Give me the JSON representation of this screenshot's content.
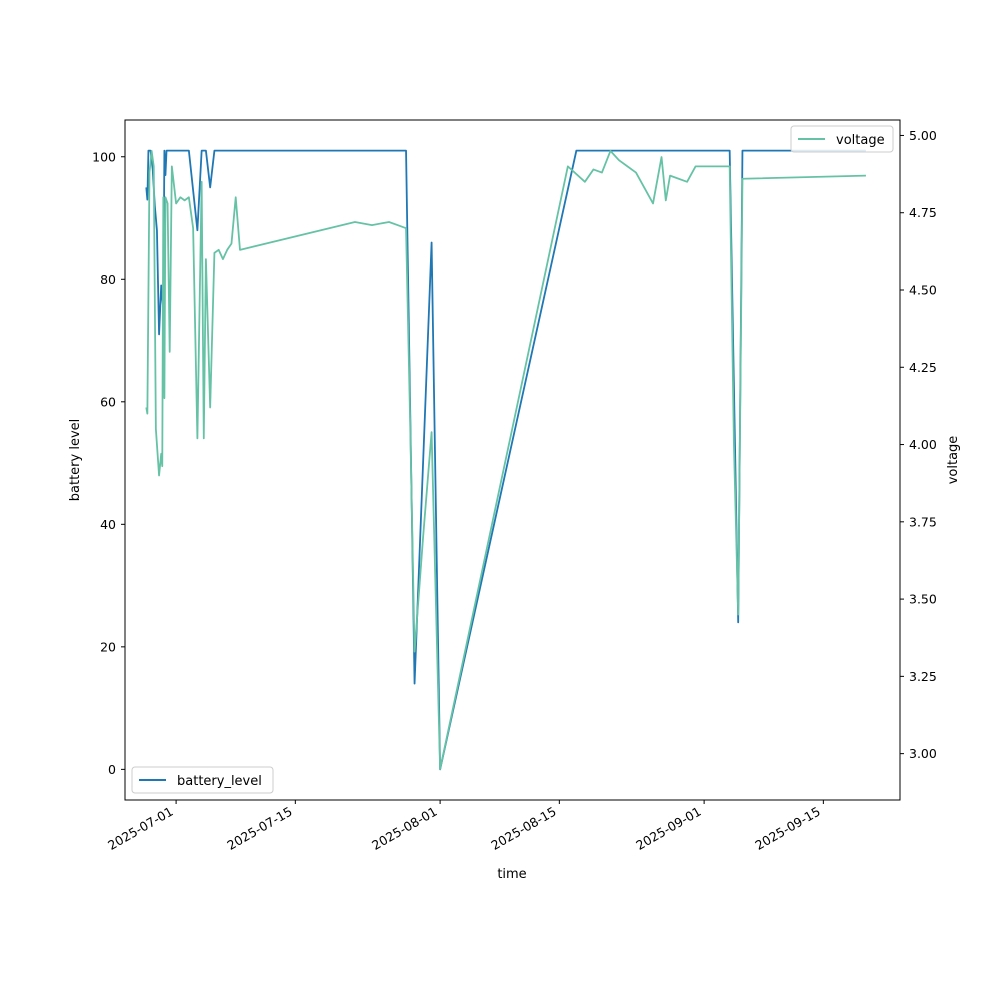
{
  "chart_data": {
    "type": "line",
    "xlabel": "time",
    "ylabel_left": "battery level",
    "ylabel_right": "voltage",
    "x_range": [
      "2025-06-25",
      "2025-09-24"
    ],
    "y_left_range": [
      -5,
      106
    ],
    "y_right_range": [
      2.85,
      5.05
    ],
    "x_ticks": [
      "2025-07-01",
      "2025-07-15",
      "2025-08-01",
      "2025-08-15",
      "2025-09-01",
      "2025-09-15"
    ],
    "y_left_ticks": [
      0,
      20,
      40,
      60,
      80,
      100
    ],
    "y_right_ticks": [
      "3.00",
      "3.25",
      "3.50",
      "3.75",
      "4.00",
      "4.25",
      "4.50",
      "4.75",
      "5.00"
    ],
    "colors": {
      "battery_level": "#1f77b4",
      "voltage": "#66c2a5"
    },
    "legends": {
      "battery_level": "lower-left",
      "voltage": "upper-right"
    },
    "series": [
      {
        "name": "battery_level",
        "axis": "left",
        "points": [
          [
            "2025-06-27T12:00",
            95
          ],
          [
            "2025-06-27T15:00",
            93
          ],
          [
            "2025-06-27T18:00",
            101
          ],
          [
            "2025-06-28T00:00",
            101
          ],
          [
            "2025-06-28T06:00",
            98
          ],
          [
            "2025-06-28T12:00",
            92
          ],
          [
            "2025-06-28T18:00",
            88
          ],
          [
            "2025-06-29T00:00",
            71
          ],
          [
            "2025-06-29T06:00",
            79
          ],
          [
            "2025-06-29T12:00",
            75
          ],
          [
            "2025-06-29T15:00",
            101
          ],
          [
            "2025-06-29T18:00",
            97
          ],
          [
            "2025-06-29T21:00",
            101
          ],
          [
            "2025-07-02T12:00",
            101
          ],
          [
            "2025-07-03T12:00",
            88
          ],
          [
            "2025-07-04T00:00",
            101
          ],
          [
            "2025-07-04T12:00",
            101
          ],
          [
            "2025-07-05T00:00",
            95
          ],
          [
            "2025-07-05T12:00",
            101
          ],
          [
            "2025-07-28T00:00",
            101
          ],
          [
            "2025-07-29T00:00",
            14
          ],
          [
            "2025-07-31T00:00",
            86
          ],
          [
            "2025-08-01T00:00",
            0
          ],
          [
            "2025-08-17T00:00",
            101
          ],
          [
            "2025-09-04T00:00",
            101
          ],
          [
            "2025-09-05T00:00",
            24
          ],
          [
            "2025-09-05T12:00",
            101
          ],
          [
            "2025-09-20T00:00",
            101
          ]
        ]
      },
      {
        "name": "voltage",
        "axis": "right",
        "points": [
          [
            "2025-06-27T12:00",
            4.12
          ],
          [
            "2025-06-27T15:00",
            4.1
          ],
          [
            "2025-06-27T21:00",
            4.88
          ],
          [
            "2025-06-28T03:00",
            4.95
          ],
          [
            "2025-06-28T09:00",
            4.9
          ],
          [
            "2025-06-28T15:00",
            4.05
          ],
          [
            "2025-06-29T00:00",
            3.9
          ],
          [
            "2025-06-29T06:00",
            3.97
          ],
          [
            "2025-06-29T09:00",
            3.93
          ],
          [
            "2025-06-29T12:00",
            4.8
          ],
          [
            "2025-06-29T15:00",
            4.15
          ],
          [
            "2025-06-29T18:00",
            4.8
          ],
          [
            "2025-06-30T00:00",
            4.78
          ],
          [
            "2025-06-30T06:00",
            4.3
          ],
          [
            "2025-06-30T12:00",
            4.9
          ],
          [
            "2025-07-01T00:00",
            4.78
          ],
          [
            "2025-07-01T12:00",
            4.8
          ],
          [
            "2025-07-02T00:00",
            4.79
          ],
          [
            "2025-07-02T12:00",
            4.8
          ],
          [
            "2025-07-03T00:00",
            4.7
          ],
          [
            "2025-07-03T12:00",
            4.02
          ],
          [
            "2025-07-04T00:00",
            4.85
          ],
          [
            "2025-07-04T06:00",
            4.02
          ],
          [
            "2025-07-04T12:00",
            4.6
          ],
          [
            "2025-07-05T00:00",
            4.12
          ],
          [
            "2025-07-05T12:00",
            4.62
          ],
          [
            "2025-07-06T00:00",
            4.63
          ],
          [
            "2025-07-06T12:00",
            4.6
          ],
          [
            "2025-07-07T00:00",
            4.63
          ],
          [
            "2025-07-07T12:00",
            4.65
          ],
          [
            "2025-07-08T00:00",
            4.8
          ],
          [
            "2025-07-08T12:00",
            4.63
          ],
          [
            "2025-07-22T00:00",
            4.72
          ],
          [
            "2025-07-24T00:00",
            4.71
          ],
          [
            "2025-07-26T00:00",
            4.72
          ],
          [
            "2025-07-27T00:00",
            4.71
          ],
          [
            "2025-07-28T00:00",
            4.7
          ],
          [
            "2025-07-28T12:00",
            4.05
          ],
          [
            "2025-07-29T00:00",
            3.33
          ],
          [
            "2025-07-30T00:00",
            3.7
          ],
          [
            "2025-07-31T00:00",
            4.04
          ],
          [
            "2025-08-01T00:00",
            2.95
          ],
          [
            "2025-08-16T00:00",
            4.9
          ],
          [
            "2025-08-18T00:00",
            4.85
          ],
          [
            "2025-08-19T00:00",
            4.89
          ],
          [
            "2025-08-20T00:00",
            4.88
          ],
          [
            "2025-08-21T00:00",
            4.95
          ],
          [
            "2025-08-22T00:00",
            4.92
          ],
          [
            "2025-08-23T00:00",
            4.9
          ],
          [
            "2025-08-24T00:00",
            4.88
          ],
          [
            "2025-08-26T00:00",
            4.78
          ],
          [
            "2025-08-27T00:00",
            4.93
          ],
          [
            "2025-08-27T12:00",
            4.79
          ],
          [
            "2025-08-28T00:00",
            4.87
          ],
          [
            "2025-08-30T00:00",
            4.85
          ],
          [
            "2025-08-31T00:00",
            4.9
          ],
          [
            "2025-09-02T00:00",
            4.9
          ],
          [
            "2025-09-04T00:00",
            4.9
          ],
          [
            "2025-09-04T12:00",
            4.0
          ],
          [
            "2025-09-05T00:00",
            3.45
          ],
          [
            "2025-09-05T12:00",
            4.86
          ],
          [
            "2025-09-20T00:00",
            4.87
          ]
        ]
      }
    ]
  }
}
